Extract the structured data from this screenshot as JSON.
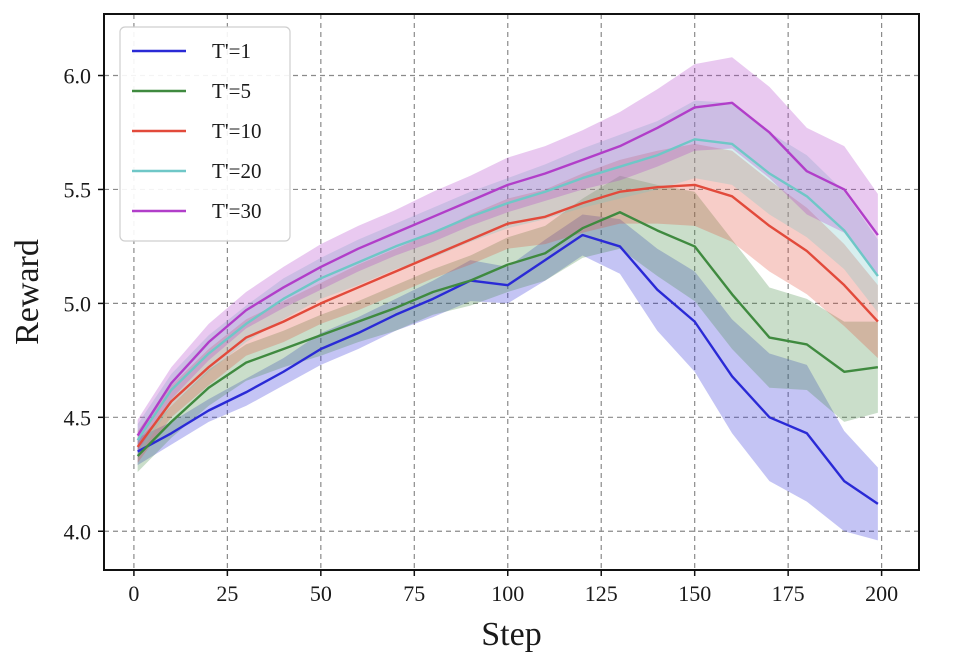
{
  "chart_data": {
    "type": "line",
    "title": "",
    "xlabel": "Step",
    "ylabel": "Reward",
    "xlim": [
      -8,
      210
    ],
    "ylim": [
      3.83,
      6.27
    ],
    "xticks": [
      0,
      25,
      50,
      75,
      100,
      125,
      150,
      175,
      200
    ],
    "xtick_labels": [
      "0",
      "25",
      "50",
      "75",
      "100",
      "125",
      "150",
      "175",
      "200"
    ],
    "yticks": [
      4.0,
      4.5,
      5.0,
      5.5,
      6.0
    ],
    "ytick_labels": [
      "4.0",
      "4.5",
      "5.0",
      "5.5",
      "6.0"
    ],
    "grid": true,
    "grid_style": "dashed",
    "legend_position": "top-left",
    "x": [
      1,
      10,
      20,
      30,
      40,
      50,
      60,
      70,
      80,
      90,
      100,
      110,
      120,
      130,
      140,
      150,
      160,
      170,
      180,
      190,
      199
    ],
    "series": [
      {
        "name": "T'=1",
        "color": "#2a2ad6",
        "values": [
          4.35,
          4.43,
          4.53,
          4.61,
          4.7,
          4.8,
          4.87,
          4.95,
          5.02,
          5.1,
          5.08,
          5.19,
          5.3,
          5.25,
          5.06,
          4.92,
          4.68,
          4.5,
          4.43,
          4.22,
          4.12
        ],
        "band": [
          0.06,
          0.05,
          0.05,
          0.06,
          0.06,
          0.07,
          0.07,
          0.07,
          0.08,
          0.09,
          0.08,
          0.09,
          0.09,
          0.12,
          0.18,
          0.22,
          0.25,
          0.28,
          0.3,
          0.22,
          0.16
        ]
      },
      {
        "name": "T'=5",
        "color": "#3f8a3f",
        "values": [
          4.33,
          4.48,
          4.63,
          4.74,
          4.8,
          4.86,
          4.92,
          4.98,
          5.05,
          5.1,
          5.17,
          5.22,
          5.33,
          5.4,
          5.32,
          5.25,
          5.04,
          4.85,
          4.82,
          4.7,
          4.72
        ],
        "band": [
          0.07,
          0.07,
          0.08,
          0.08,
          0.08,
          0.09,
          0.09,
          0.1,
          0.1,
          0.11,
          0.12,
          0.12,
          0.13,
          0.16,
          0.2,
          0.24,
          0.24,
          0.22,
          0.2,
          0.22,
          0.2
        ]
      },
      {
        "name": "T'=10",
        "color": "#e24a3b",
        "values": [
          4.37,
          4.57,
          4.72,
          4.85,
          4.92,
          5.0,
          5.07,
          5.14,
          5.21,
          5.28,
          5.35,
          5.38,
          5.44,
          5.49,
          5.51,
          5.52,
          5.47,
          5.34,
          5.23,
          5.08,
          4.92
        ],
        "band": [
          0.07,
          0.07,
          0.08,
          0.08,
          0.09,
          0.09,
          0.1,
          0.1,
          0.1,
          0.11,
          0.11,
          0.12,
          0.13,
          0.14,
          0.16,
          0.18,
          0.2,
          0.2,
          0.19,
          0.18,
          0.16
        ]
      },
      {
        "name": "T'=20",
        "color": "#6fc7c7",
        "values": [
          4.4,
          4.62,
          4.78,
          4.91,
          5.02,
          5.11,
          5.18,
          5.25,
          5.31,
          5.38,
          5.44,
          5.49,
          5.55,
          5.6,
          5.65,
          5.72,
          5.7,
          5.57,
          5.47,
          5.32,
          5.12
        ],
        "band": [
          0.07,
          0.07,
          0.08,
          0.08,
          0.09,
          0.09,
          0.1,
          0.1,
          0.11,
          0.11,
          0.11,
          0.12,
          0.13,
          0.14,
          0.15,
          0.17,
          0.18,
          0.18,
          0.18,
          0.17,
          0.16
        ]
      },
      {
        "name": "T'=30",
        "color": "#b13ec9",
        "values": [
          4.42,
          4.65,
          4.83,
          4.97,
          5.07,
          5.16,
          5.24,
          5.31,
          5.38,
          5.45,
          5.52,
          5.57,
          5.63,
          5.69,
          5.77,
          5.86,
          5.88,
          5.75,
          5.58,
          5.5,
          5.3
        ],
        "band": [
          0.07,
          0.07,
          0.08,
          0.08,
          0.09,
          0.1,
          0.1,
          0.1,
          0.11,
          0.11,
          0.12,
          0.12,
          0.13,
          0.15,
          0.17,
          0.19,
          0.2,
          0.2,
          0.19,
          0.19,
          0.18
        ]
      }
    ]
  }
}
